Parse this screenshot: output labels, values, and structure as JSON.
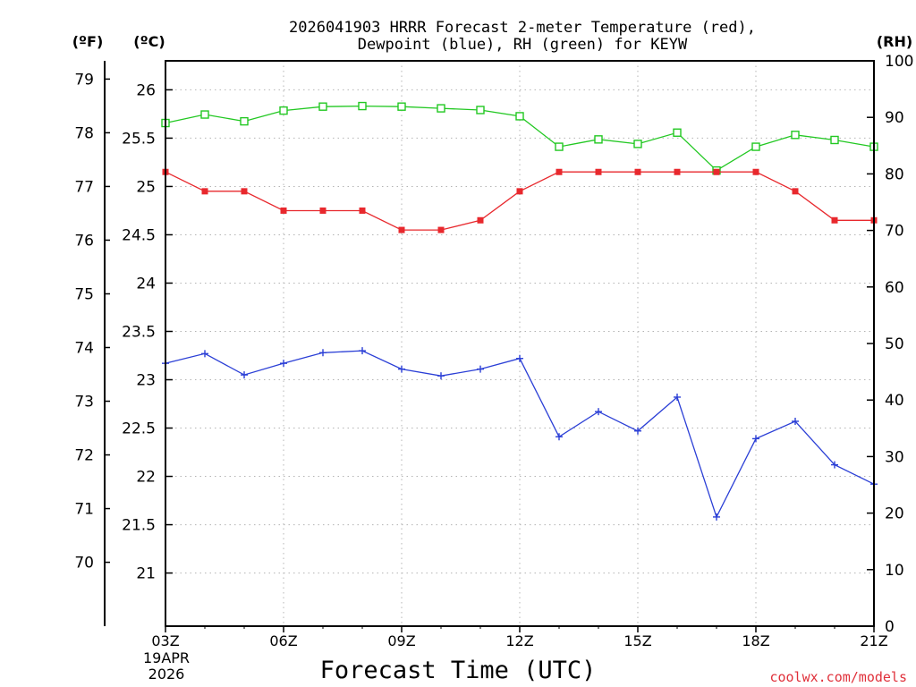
{
  "chart_data": {
    "type": "line",
    "title_line1": "2026041903 HRRR Forecast 2-meter Temperature (red),",
    "title_line2": "Dewpoint (blue), RH (green) for KEYW",
    "left_f_header": "(ºF)",
    "left_c_header": "(ºC)",
    "right_header": "(RH)",
    "xlabel": "Forecast Time (UTC)",
    "credit": "coolwx.com/models",
    "date_line1": "19APR",
    "date_line2": "2026",
    "x_ticks": [
      "03Z",
      "06Z",
      "09Z",
      "12Z",
      "15Z",
      "18Z",
      "21Z"
    ],
    "x_hours": [
      3,
      21
    ],
    "celsius_ticks": [
      "21",
      "21.5",
      "22",
      "22.5",
      "23",
      "23.5",
      "24",
      "24.5",
      "25",
      "25.5",
      "26"
    ],
    "fahrenheit_ticks": [
      "70",
      "71",
      "72",
      "73",
      "74",
      "75",
      "76",
      "77",
      "78",
      "79"
    ],
    "rh_ticks": [
      "0",
      "10",
      "20",
      "30",
      "40",
      "50",
      "60",
      "70",
      "80",
      "90",
      "100"
    ],
    "ylim_c": [
      20.45,
      26.3
    ],
    "ylim_rh": [
      0,
      100
    ],
    "hours": [
      3,
      4,
      5,
      6,
      7,
      8,
      9,
      10,
      11,
      12,
      13,
      14,
      15,
      16,
      17,
      18,
      19,
      20,
      21
    ],
    "series": [
      {
        "name": "Temperature",
        "unit": "C",
        "color": "#e8282d",
        "marker": "filled-square",
        "values": [
          25.15,
          24.95,
          24.95,
          24.75,
          24.75,
          24.75,
          24.55,
          24.55,
          24.65,
          24.95,
          25.15,
          25.15,
          25.15,
          25.15,
          25.15,
          25.15,
          24.95,
          24.65,
          24.65
        ]
      },
      {
        "name": "Dewpoint",
        "unit": "C",
        "color": "#2b3fd6",
        "marker": "plus",
        "values": [
          23.17,
          23.27,
          23.05,
          23.17,
          23.28,
          23.3,
          23.11,
          23.04,
          23.11,
          23.22,
          22.41,
          22.67,
          22.47,
          22.82,
          21.58,
          22.39,
          22.57,
          22.12,
          21.92
        ]
      },
      {
        "name": "RH",
        "unit": "%",
        "color": "#22c822",
        "marker": "open-square",
        "values": [
          89,
          90.5,
          89.3,
          91.2,
          91.9,
          92,
          91.9,
          91.6,
          91.3,
          90.2,
          84.8,
          86.1,
          85.3,
          87.3,
          80.6,
          84.8,
          86.9,
          86,
          84.8
        ]
      }
    ]
  }
}
